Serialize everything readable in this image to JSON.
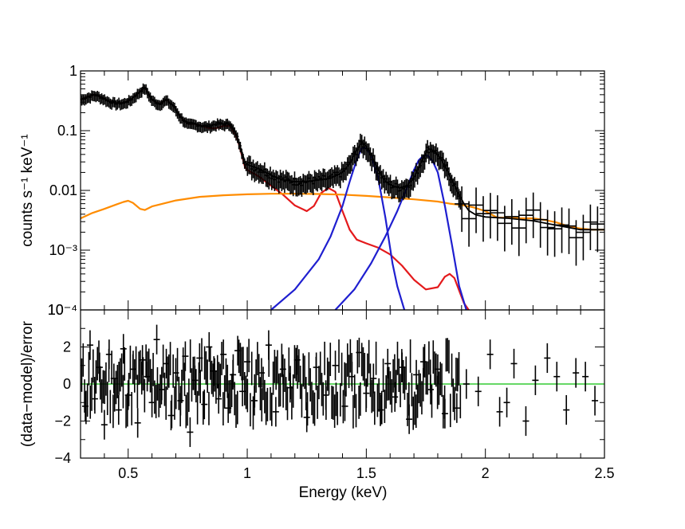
{
  "chart_data": [
    {
      "type": "line",
      "panel": "spectrum",
      "xlabel": "Energy (keV)",
      "ylabel": "counts s⁻¹ keV⁻¹",
      "yscale": "log",
      "xlim": [
        0.3,
        2.5
      ],
      "ylim": [
        0.0001,
        1
      ],
      "y_tick_labels": [
        "1",
        "0.1",
        "0.01",
        "10⁻³",
        "10⁻⁴"
      ],
      "y_tick_values": [
        1,
        0.1,
        0.01,
        0.001,
        0.0001
      ],
      "series": [
        {
          "role": "total-model",
          "color": "#000000",
          "x": [
            0.3,
            0.33,
            0.36,
            0.39,
            0.42,
            0.45,
            0.48,
            0.51,
            0.54,
            0.57,
            0.6,
            0.63,
            0.66,
            0.69,
            0.72,
            0.75,
            0.78,
            0.81,
            0.84,
            0.87,
            0.9,
            0.93,
            0.96,
            0.99,
            1.0,
            1.05,
            1.1,
            1.15,
            1.2,
            1.25,
            1.3,
            1.35,
            1.4,
            1.43,
            1.46,
            1.48,
            1.5,
            1.52,
            1.55,
            1.58,
            1.61,
            1.64,
            1.67,
            1.7,
            1.73,
            1.76,
            1.79,
            1.82,
            1.85,
            1.88,
            1.91,
            1.93,
            1.96,
            2.0,
            2.1,
            2.2,
            2.3,
            2.4,
            2.5
          ],
          "y": [
            0.33,
            0.37,
            0.4,
            0.36,
            0.31,
            0.29,
            0.29,
            0.33,
            0.42,
            0.53,
            0.33,
            0.28,
            0.33,
            0.26,
            0.17,
            0.13,
            0.13,
            0.12,
            0.12,
            0.13,
            0.13,
            0.13,
            0.075,
            0.03,
            0.027,
            0.023,
            0.018,
            0.015,
            0.014,
            0.014,
            0.015,
            0.016,
            0.02,
            0.028,
            0.048,
            0.062,
            0.055,
            0.04,
            0.022,
            0.014,
            0.012,
            0.011,
            0.012,
            0.016,
            0.03,
            0.05,
            0.045,
            0.03,
            0.018,
            0.01,
            0.006,
            0.0046,
            0.0039,
            0.0036,
            0.0034,
            0.0031,
            0.0026,
            0.0022,
            0.0022
          ]
        },
        {
          "role": "component-1",
          "color": "#e41a1c",
          "x": [
            0.3,
            0.33,
            0.36,
            0.39,
            0.42,
            0.45,
            0.48,
            0.51,
            0.54,
            0.57,
            0.6,
            0.63,
            0.66,
            0.69,
            0.72,
            0.75,
            0.78,
            0.81,
            0.84,
            0.87,
            0.9,
            0.93,
            0.96,
            0.99,
            1.0,
            1.05,
            1.1,
            1.15,
            1.2,
            1.25,
            1.28,
            1.31,
            1.34,
            1.37,
            1.4,
            1.43,
            1.46,
            1.5,
            1.55,
            1.6,
            1.65,
            1.7,
            1.75,
            1.8,
            1.83,
            1.85,
            1.87,
            1.89,
            1.91,
            1.93
          ],
          "y": [
            0.33,
            0.37,
            0.4,
            0.36,
            0.31,
            0.29,
            0.29,
            0.33,
            0.42,
            0.53,
            0.33,
            0.28,
            0.33,
            0.26,
            0.17,
            0.13,
            0.13,
            0.12,
            0.11,
            0.11,
            0.12,
            0.12,
            0.07,
            0.025,
            0.022,
            0.017,
            0.012,
            0.0085,
            0.0056,
            0.0045,
            0.0055,
            0.009,
            0.011,
            0.0095,
            0.0045,
            0.0022,
            0.0015,
            0.0013,
            0.0011,
            0.00085,
            0.00055,
            0.00032,
            0.00022,
            0.00024,
            0.00036,
            0.0004,
            0.00034,
            0.00021,
            0.00013,
            0.0001
          ]
        },
        {
          "role": "component-2",
          "color": "#ff8c00",
          "x": [
            0.3,
            0.35,
            0.4,
            0.45,
            0.48,
            0.5,
            0.52,
            0.55,
            0.57,
            0.6,
            0.7,
            0.8,
            0.9,
            1.0,
            1.1,
            1.2,
            1.3,
            1.4,
            1.5,
            1.6,
            1.7,
            1.8,
            1.85,
            1.9,
            1.95,
            2.0,
            2.05,
            2.1,
            2.15,
            2.2,
            2.25,
            2.3,
            2.35,
            2.4,
            2.45,
            2.5
          ],
          "y": [
            0.0034,
            0.0042,
            0.0049,
            0.0058,
            0.0064,
            0.0067,
            0.0062,
            0.0049,
            0.0047,
            0.0054,
            0.0068,
            0.0078,
            0.0083,
            0.0086,
            0.0088,
            0.0088,
            0.0087,
            0.0085,
            0.0081,
            0.0076,
            0.0071,
            0.0065,
            0.006,
            0.0057,
            0.0052,
            0.0045,
            0.0035,
            0.0035,
            0.0034,
            0.0034,
            0.0032,
            0.0029,
            0.0025,
            0.0023,
            0.0022,
            0.0022
          ]
        },
        {
          "role": "line-1",
          "color": "#1f1fd0",
          "x": [
            1.1,
            1.2,
            1.3,
            1.35,
            1.4,
            1.43,
            1.46,
            1.48,
            1.5,
            1.52,
            1.55,
            1.58,
            1.61,
            1.63,
            1.66
          ],
          "y": [
            0.0001,
            0.00022,
            0.0007,
            0.0017,
            0.0055,
            0.014,
            0.033,
            0.05,
            0.052,
            0.038,
            0.016,
            0.0035,
            0.0006,
            0.00025,
            0.0001
          ]
        },
        {
          "role": "line-2",
          "color": "#1f1fd0",
          "x": [
            1.37,
            1.45,
            1.52,
            1.58,
            1.63,
            1.67,
            1.7,
            1.72,
            1.74,
            1.76,
            1.78,
            1.8,
            1.83,
            1.86,
            1.89,
            1.92
          ],
          "y": [
            0.0001,
            0.00022,
            0.0006,
            0.0017,
            0.0045,
            0.011,
            0.022,
            0.032,
            0.038,
            0.038,
            0.03,
            0.02,
            0.0055,
            0.0012,
            0.00025,
            0.0001
          ]
        }
      ]
    },
    {
      "type": "scatter",
      "panel": "residuals",
      "xlabel": "Energy (keV)",
      "ylabel": "(data−model)/error",
      "xlim": [
        0.3,
        2.5
      ],
      "ylim": [
        -4,
        4
      ],
      "x_tick_labels": [
        "0.5",
        "1",
        "1.5",
        "2",
        "2.5"
      ],
      "x_tick_values": [
        0.5,
        1,
        1.5,
        2,
        2.5
      ],
      "y_tick_labels": [
        "2",
        "0",
        "−2",
        "−4"
      ],
      "y_tick_values": [
        2,
        0,
        -2,
        -4
      ],
      "zero_line_color": "#33cc33",
      "series": [
        {
          "role": "residuals",
          "color": "#000000",
          "x": [
            0.32,
            0.34,
            0.36,
            0.38,
            0.4,
            0.42,
            0.44,
            0.46,
            0.48,
            0.5,
            0.52,
            0.54,
            0.56,
            0.58,
            0.6,
            0.62,
            0.64,
            0.66,
            0.68,
            0.7,
            0.72,
            0.74,
            0.76,
            0.78,
            0.8,
            0.82,
            0.84,
            0.86,
            0.88,
            0.9,
            0.92,
            0.94,
            0.96,
            0.98,
            1.0,
            1.03,
            1.06,
            1.09,
            1.12,
            1.15,
            1.18,
            1.21,
            1.25,
            1.29,
            1.33,
            1.37,
            1.41,
            1.44,
            1.47,
            1.5,
            1.53,
            1.56,
            1.59,
            1.62,
            1.65,
            1.68,
            1.71,
            1.74,
            1.77,
            1.8,
            1.83,
            1.88,
            1.92,
            1.97,
            2.02,
            2.06,
            2.09,
            2.12,
            2.17,
            2.21,
            2.26,
            2.3,
            2.34,
            2.38,
            2.42,
            2.46
          ],
          "y": [
            -1.2,
            2.1,
            -0.8,
            0.9,
            -2.2,
            1.6,
            0.3,
            -1.4,
            1.9,
            -0.6,
            0.8,
            -2.1,
            1.3,
            0.4,
            -1.0,
            2.4,
            -0.3,
            1.1,
            -1.7,
            0.6,
            -0.9,
            1.5,
            -2.6,
            0.2,
            1.4,
            -1.1,
            2.0,
            0.7,
            -0.8,
            1.6,
            -1.3,
            0.5,
            1.8,
            -0.4,
            1.2,
            -0.9,
            0.6,
            2.1,
            -1.5,
            0.8,
            -0.2,
            1.3,
            -1.8,
            0.9,
            -0.6,
            1.0,
            -1.2,
            0.4,
            1.7,
            -0.5,
            0.3,
            -1.4,
            1.1,
            -0.7,
            0.9,
            -1.9,
            0.5,
            1.2,
            -0.3,
            0.8,
            -1.6,
            -1.3,
            0.0,
            -0.4,
            1.6,
            -1.5,
            -1.0,
            1.1,
            -2.0,
            0.2,
            1.4,
            0.4,
            -1.4,
            0.6,
            0.4,
            -0.9
          ],
          "err_y": [
            0.8,
            0.8,
            0.8,
            0.8,
            0.8,
            0.8,
            0.8,
            0.8,
            0.8,
            0.8,
            0.8,
            0.8,
            0.8,
            0.8,
            0.8,
            0.8,
            0.8,
            0.8,
            0.8,
            0.8,
            0.8,
            0.8,
            0.8,
            0.8,
            0.8,
            0.8,
            0.8,
            0.8,
            0.8,
            0.8,
            0.8,
            0.8,
            0.8,
            0.8,
            0.8,
            0.8,
            0.8,
            0.8,
            0.8,
            0.8,
            0.8,
            0.8,
            0.8,
            0.8,
            0.8,
            0.8,
            0.8,
            0.8,
            0.8,
            0.8,
            0.8,
            0.8,
            0.8,
            0.8,
            0.8,
            0.8,
            0.8,
            0.8,
            0.8,
            0.8,
            0.8,
            0.8,
            0.8,
            0.8,
            0.8,
            0.8,
            0.8,
            0.8,
            0.8,
            0.8,
            0.8,
            0.8,
            0.8,
            0.8,
            0.8,
            0.8
          ]
        }
      ]
    }
  ]
}
